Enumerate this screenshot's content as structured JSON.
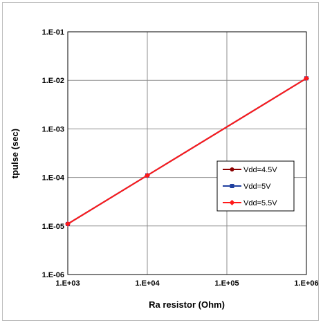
{
  "chart_data": {
    "type": "line",
    "xlabel": "Ra resistor (Ohm)",
    "ylabel": "tpulse (sec)",
    "x_scale": "log",
    "y_scale": "log",
    "xlim": [
      1000,
      1000000
    ],
    "ylim": [
      1e-06,
      0.1
    ],
    "x_ticks": [
      1000,
      10000,
      100000,
      1000000
    ],
    "x_tick_labels": [
      "1.E+03",
      "1.E+04",
      "1.E+05",
      "1.E+06"
    ],
    "y_ticks": [
      0.1,
      0.01,
      0.001,
      0.0001,
      1e-05,
      1e-06
    ],
    "y_tick_labels": [
      "1.E-01",
      "1.E-02",
      "1.E-03",
      "1.E-04",
      "1.E-05",
      "1.E-06"
    ],
    "grid": true,
    "legend_position": "right-middle",
    "x": [
      1000,
      10000,
      1000000
    ],
    "series": [
      {
        "name": "Vdd=4.5V",
        "values": [
          1.1e-05,
          0.00011,
          0.011
        ],
        "color": "#8b0000",
        "marker": "circle"
      },
      {
        "name": "Vdd=5V",
        "values": [
          1.1e-05,
          0.00011,
          0.011
        ],
        "color": "#1f3f9f",
        "marker": "square"
      },
      {
        "name": "Vdd=5.5V",
        "values": [
          1.1e-05,
          0.00011,
          0.011
        ],
        "color": "#ff1a1a",
        "marker": "diamond"
      }
    ]
  }
}
